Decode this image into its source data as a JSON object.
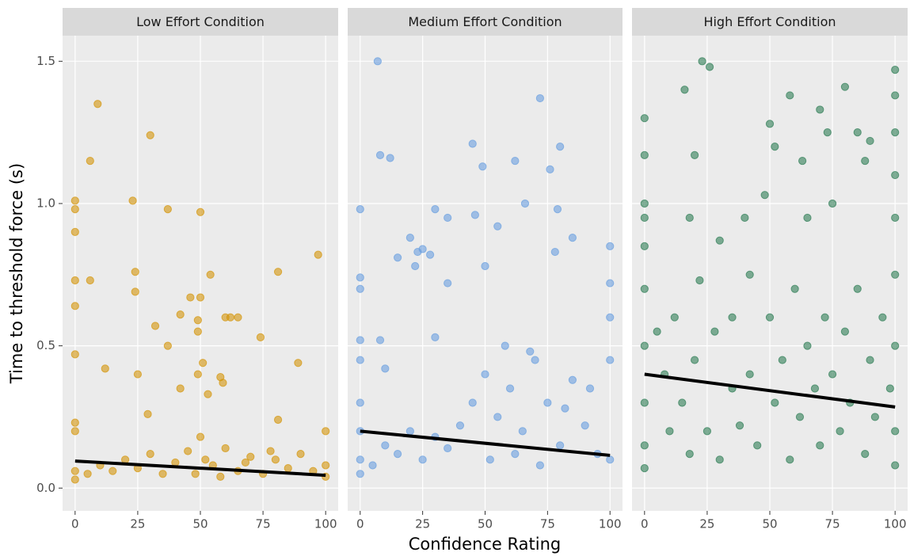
{
  "chart_data": [
    {
      "type": "scatter",
      "title": "Low Effort Condition",
      "y_label": "Time to threshold force (s)",
      "xlim": [
        -5,
        105
      ],
      "ylim": [
        -0.08,
        1.59
      ],
      "xticks": [
        0,
        25,
        50,
        75,
        100
      ],
      "yticks": [
        {
          "value": 0,
          "label": "0.0"
        },
        0.5,
        {
          "value": 1,
          "label": "1.0"
        },
        1.5
      ],
      "grid": true,
      "series": [
        {
          "color": "#d4950a",
          "x": [
            0,
            0,
            0,
            0,
            0,
            0,
            0,
            0,
            0,
            0,
            6,
            6,
            9,
            12,
            23,
            24,
            24,
            25,
            29,
            30,
            32,
            37,
            37,
            42,
            42,
            46,
            49,
            49,
            49,
            50,
            50,
            51,
            53,
            54,
            58,
            59,
            60,
            62,
            65,
            74,
            81,
            81,
            89,
            97,
            100,
            5,
            10,
            15,
            20,
            25,
            30,
            35,
            40,
            45,
            50,
            52,
            55,
            60,
            65,
            70,
            75,
            80,
            85,
            90,
            95,
            100,
            100,
            48,
            58,
            68,
            78
          ],
          "values": [
            1.01,
            0.98,
            0.9,
            0.73,
            0.64,
            0.47,
            0.23,
            0.2,
            0.06,
            0.03,
            1.15,
            0.73,
            1.35,
            0.42,
            1.01,
            0.76,
            0.69,
            0.4,
            0.26,
            1.24,
            0.57,
            0.98,
            0.5,
            0.61,
            0.35,
            0.67,
            0.59,
            0.55,
            0.4,
            0.97,
            0.67,
            0.44,
            0.33,
            0.75,
            0.39,
            0.37,
            0.6,
            0.6,
            0.6,
            0.53,
            0.76,
            0.24,
            0.44,
            0.82,
            0.2,
            0.05,
            0.08,
            0.06,
            0.1,
            0.07,
            0.12,
            0.05,
            0.09,
            0.13,
            0.18,
            0.1,
            0.08,
            0.14,
            0.06,
            0.11,
            0.05,
            0.1,
            0.07,
            0.12,
            0.06,
            0.08,
            0.04,
            0.05,
            0.04,
            0.09,
            0.13
          ]
        }
      ],
      "fit": {
        "color": "#000000",
        "x": [
          0,
          100
        ],
        "values": [
          0.095,
          0.045
        ]
      }
    },
    {
      "type": "scatter",
      "title": "Medium Effort Condition",
      "x_label": "Confidence Rating",
      "xlim": [
        -5,
        105
      ],
      "ylim": [
        -0.08,
        1.59
      ],
      "xticks": [
        0,
        25,
        50,
        75,
        100
      ],
      "grid": true,
      "series": [
        {
          "color": "#6a9fe0",
          "x": [
            0,
            0,
            0,
            0,
            0,
            0,
            0,
            0,
            0,
            7,
            8,
            12,
            8,
            10,
            15,
            20,
            22,
            23,
            25,
            28,
            30,
            30,
            35,
            35,
            45,
            46,
            49,
            50,
            55,
            62,
            66,
            72,
            76,
            79,
            80,
            85,
            78,
            100,
            100,
            100,
            100,
            5,
            10,
            15,
            20,
            25,
            30,
            35,
            40,
            45,
            50,
            55,
            60,
            65,
            70,
            75,
            80,
            85,
            90,
            95,
            100,
            52,
            62,
            72,
            82,
            92,
            58,
            68
          ],
          "values": [
            0.98,
            0.74,
            0.7,
            0.52,
            0.45,
            0.3,
            0.2,
            0.1,
            0.05,
            1.5,
            1.17,
            1.16,
            0.52,
            0.42,
            0.81,
            0.88,
            0.78,
            0.83,
            0.84,
            0.82,
            0.98,
            0.53,
            0.95,
            0.72,
            1.21,
            0.96,
            1.13,
            0.78,
            0.92,
            1.15,
            1.0,
            1.37,
            1.12,
            0.98,
            1.2,
            0.88,
            0.83,
            0.85,
            0.72,
            0.6,
            0.45,
            0.08,
            0.15,
            0.12,
            0.2,
            0.1,
            0.18,
            0.14,
            0.22,
            0.3,
            0.4,
            0.25,
            0.35,
            0.2,
            0.45,
            0.3,
            0.15,
            0.38,
            0.22,
            0.12,
            0.1,
            0.1,
            0.12,
            0.08,
            0.28,
            0.35,
            0.5,
            0.48
          ]
        }
      ],
      "fit": {
        "color": "#000000",
        "x": [
          0,
          100
        ],
        "values": [
          0.2,
          0.115
        ]
      }
    },
    {
      "type": "scatter",
      "title": "High Effort Condition",
      "xlim": [
        -5,
        105
      ],
      "ylim": [
        -0.08,
        1.59
      ],
      "xticks": [
        0,
        25,
        50,
        75,
        100
      ],
      "grid": true,
      "series": [
        {
          "color": "#2e7d55",
          "x": [
            0,
            0,
            0,
            0,
            0,
            0,
            0,
            0,
            0,
            0,
            16,
            20,
            23,
            26,
            18,
            22,
            30,
            35,
            40,
            42,
            48,
            50,
            52,
            58,
            63,
            70,
            73,
            80,
            85,
            90,
            88,
            75,
            65,
            100,
            100,
            100,
            100,
            100,
            100,
            5,
            8,
            10,
            12,
            15,
            18,
            20,
            25,
            28,
            30,
            35,
            38,
            42,
            45,
            50,
            52,
            55,
            58,
            60,
            62,
            65,
            68,
            70,
            72,
            75,
            78,
            80,
            82,
            85,
            88,
            90,
            92,
            95,
            98,
            100,
            100,
            100
          ],
          "values": [
            1.3,
            1.17,
            1.0,
            0.95,
            0.85,
            0.7,
            0.5,
            0.3,
            0.15,
            0.07,
            1.4,
            1.17,
            1.5,
            1.48,
            0.95,
            0.73,
            0.87,
            0.6,
            0.95,
            0.75,
            1.03,
            1.28,
            1.2,
            1.38,
            1.15,
            1.33,
            1.25,
            1.41,
            1.25,
            1.22,
            1.15,
            1.0,
            0.95,
            1.47,
            1.38,
            1.25,
            1.1,
            0.95,
            0.75,
            0.55,
            0.4,
            0.2,
            0.6,
            0.3,
            0.12,
            0.45,
            0.2,
            0.55,
            0.1,
            0.35,
            0.22,
            0.4,
            0.15,
            0.6,
            0.3,
            0.45,
            0.1,
            0.7,
            0.25,
            0.5,
            0.35,
            0.15,
            0.6,
            0.4,
            0.2,
            0.55,
            0.3,
            0.7,
            0.12,
            0.45,
            0.25,
            0.6,
            0.35,
            0.5,
            0.2,
            0.08
          ]
        }
      ],
      "fit": {
        "color": "#000000",
        "x": [
          0,
          100
        ],
        "values": [
          0.4,
          0.285
        ]
      }
    }
  ]
}
